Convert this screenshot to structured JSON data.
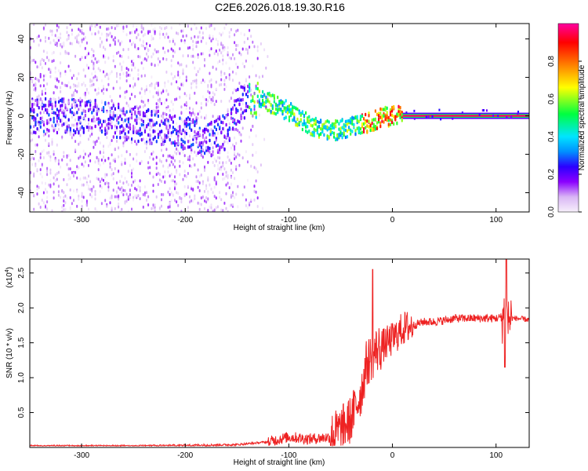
{
  "title": "C2E6.2026.018.19.30.R16",
  "chart_data": [
    {
      "type": "heatmap",
      "xlabel": "Height of straight line (km)",
      "ylabel": "Frequency (Hz)",
      "xlim": [
        -350,
        132
      ],
      "ylim": [
        -50,
        48
      ],
      "x_ticks": [
        -300,
        -200,
        -100,
        0,
        100
      ],
      "y_ticks": [
        -40,
        -20,
        0,
        20,
        40
      ],
      "colorbar": {
        "label": "Normalized spectral amplitude",
        "range": [
          0,
          1
        ],
        "ticks": [
          0.0,
          0.2,
          0.4,
          0.6,
          0.8
        ],
        "colors": [
          "#f7f0fb",
          "#d9b6f5",
          "#8b00ff",
          "#2b00ff",
          "#0090ff",
          "#00e5ff",
          "#00ff40",
          "#ffff00",
          "#ff8000",
          "#ff0000",
          "#ff00a0"
        ]
      },
      "ridge_center_hz": {
        "x": [
          -350,
          -300,
          -250,
          -200,
          -175,
          -160,
          -150,
          -140,
          -130,
          -120,
          -100,
          -80,
          -60,
          -40,
          -20,
          -10,
          0,
          10,
          100,
          132
        ],
        "y": [
          0,
          0,
          -4,
          -10,
          -12,
          -8,
          5,
          8,
          8,
          7,
          2,
          -5,
          -8,
          -6,
          -3,
          -1,
          0,
          0,
          0,
          0
        ]
      },
      "carrier_line_hz": {
        "x_start": 10,
        "x_end": 132,
        "frequency": 0
      }
    },
    {
      "type": "line",
      "xlabel": "Height of straight line (km)",
      "ylabel": "SNR (10 * v/v)",
      "y_multiplier": "(x10",
      "y_multiplier_exp": "4",
      "xlim": [
        -350,
        132
      ],
      "ylim": [
        0,
        2.7
      ],
      "x_ticks": [
        -300,
        -200,
        -100,
        0,
        100
      ],
      "y_ticks": [
        0.5,
        1.0,
        1.5,
        2.0,
        2.5
      ],
      "series": [
        {
          "color": "#ee2222",
          "x": [
            -350,
            -300,
            -250,
            -200,
            -150,
            -120,
            -100,
            -80,
            -60,
            -50,
            -40,
            -30,
            -25,
            -20,
            -15,
            -10,
            0,
            10,
            20,
            30,
            40,
            50,
            60,
            70,
            80,
            90,
            100,
            105,
            108,
            110,
            112,
            115,
            120,
            132
          ],
          "y": [
            0.02,
            0.02,
            0.02,
            0.03,
            0.04,
            0.08,
            0.15,
            0.12,
            0.15,
            0.25,
            0.4,
            0.8,
            1.2,
            1.3,
            1.4,
            1.45,
            1.55,
            1.7,
            1.75,
            1.8,
            1.8,
            1.82,
            1.85,
            1.85,
            1.85,
            1.85,
            1.85,
            1.87,
            1.9,
            1.85,
            1.84,
            1.85,
            1.85,
            1.83
          ]
        }
      ]
    }
  ]
}
